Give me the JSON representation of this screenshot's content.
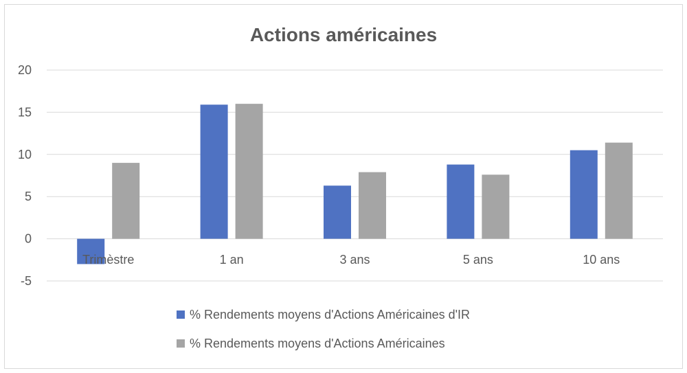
{
  "chart_data": {
    "type": "bar",
    "title": "Actions américaines",
    "categories": [
      "Trimèstre",
      "1 an",
      "3 ans",
      "5 ans",
      "10 ans"
    ],
    "series": [
      {
        "name": "% Rendements moyens d'Actions Américaines d'IR",
        "color": "#4f72c2",
        "values": [
          -3.0,
          15.9,
          6.3,
          8.8,
          10.5
        ]
      },
      {
        "name": "% Rendements moyens d'Actions Américaines",
        "color": "#a5a5a5",
        "values": [
          9.0,
          16.0,
          7.9,
          7.6,
          11.4
        ]
      }
    ],
    "y_ticks": [
      "20",
      "15",
      "10",
      "5",
      "0",
      "-5"
    ],
    "ylim": [
      -5,
      20
    ],
    "grid": true,
    "legend_position": "bottom"
  }
}
